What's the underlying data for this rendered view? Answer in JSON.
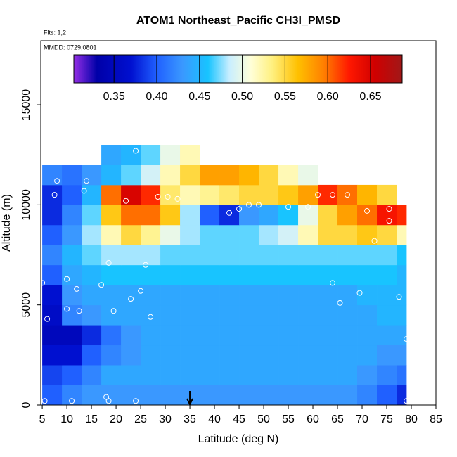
{
  "chart_data": {
    "type": "heatmap",
    "title": "ATOM1 Northeast_Pacific CH3I_PMSD",
    "flights": "Flts: 1,2",
    "dates": "MMDD: 0729,0801",
    "xlabel": "Latitude (deg N)",
    "ylabel": "Altitude (m)",
    "xlim": [
      4.7,
      85
    ],
    "ylim": [
      0,
      18200
    ],
    "xticks": [
      5,
      10,
      15,
      20,
      25,
      30,
      35,
      40,
      45,
      50,
      55,
      60,
      65,
      70,
      75,
      80,
      85
    ],
    "yticks": [
      0,
      5000,
      10000,
      15000
    ],
    "xedges": [
      5,
      9,
      13,
      17,
      21,
      25,
      29,
      33,
      37,
      41,
      45,
      49,
      53,
      57,
      61,
      65,
      69,
      73,
      77,
      79
    ],
    "yedges": [
      0,
      1000,
      2000,
      3000,
      4000,
      5000,
      6000,
      7000,
      8000,
      9000,
      10000,
      11000,
      12000,
      13000
    ],
    "z": [
      [
        0.4,
        0.42,
        0.43,
        0.43,
        0.43,
        0.43,
        0.43,
        0.43,
        0.43,
        0.43,
        0.43,
        0.43,
        0.43,
        0.43,
        0.43,
        0.43,
        0.42,
        0.4,
        0.38
      ],
      [
        0.39,
        0.4,
        0.42,
        0.44,
        0.44,
        0.44,
        0.44,
        0.44,
        0.44,
        0.44,
        0.44,
        0.44,
        0.44,
        0.44,
        0.44,
        0.44,
        0.43,
        0.42,
        0.41
      ],
      [
        0.37,
        0.37,
        0.4,
        0.42,
        0.43,
        0.44,
        0.44,
        0.44,
        0.44,
        0.44,
        0.44,
        0.44,
        0.44,
        0.44,
        0.44,
        0.44,
        0.44,
        0.43,
        0.43
      ],
      [
        0.35,
        0.35,
        0.38,
        0.41,
        0.43,
        0.44,
        0.44,
        0.44,
        0.44,
        0.44,
        0.44,
        0.44,
        0.44,
        0.44,
        0.44,
        0.44,
        0.44,
        0.44,
        0.44
      ],
      [
        0.36,
        0.42,
        0.43,
        0.44,
        0.44,
        0.44,
        0.44,
        0.44,
        0.44,
        0.44,
        0.44,
        0.44,
        0.44,
        0.44,
        0.44,
        0.44,
        0.44,
        0.45,
        0.45
      ],
      [
        0.37,
        0.43,
        0.44,
        0.44,
        0.44,
        0.44,
        0.44,
        0.44,
        0.44,
        0.44,
        0.44,
        0.44,
        0.44,
        0.44,
        0.44,
        0.44,
        0.45,
        0.45,
        0.45
      ],
      [
        0.4,
        0.44,
        0.45,
        0.46,
        0.46,
        0.46,
        0.46,
        0.46,
        0.46,
        0.46,
        0.46,
        0.46,
        0.46,
        0.46,
        0.46,
        0.46,
        0.46,
        0.46,
        0.45
      ],
      [
        0.42,
        0.45,
        0.47,
        0.48,
        0.48,
        0.48,
        0.47,
        0.47,
        0.47,
        0.47,
        0.47,
        0.47,
        0.47,
        0.47,
        0.47,
        0.47,
        0.47,
        0.47,
        0.46
      ],
      [
        0.4,
        0.43,
        0.48,
        0.52,
        0.55,
        0.53,
        0.5,
        0.48,
        0.47,
        0.47,
        0.47,
        0.48,
        0.49,
        0.52,
        0.55,
        0.55,
        0.56,
        0.55,
        0.52
      ],
      [
        0.38,
        0.42,
        0.47,
        0.56,
        0.6,
        0.6,
        0.56,
        0.48,
        0.4,
        0.38,
        0.43,
        0.44,
        0.46,
        0.5,
        0.55,
        0.58,
        0.6,
        0.63,
        0.62
      ],
      [
        0.38,
        0.4,
        0.45,
        0.6,
        0.65,
        0.62,
        0.54,
        0.52,
        0.53,
        0.54,
        0.55,
        0.55,
        0.56,
        0.58,
        0.62,
        0.6,
        0.57,
        0.55,
        null
      ],
      [
        0.42,
        0.41,
        0.43,
        0.45,
        0.47,
        0.49,
        0.52,
        0.55,
        0.58,
        0.58,
        0.57,
        0.55,
        0.52,
        0.5,
        null,
        null,
        null,
        null,
        null
      ],
      [
        null,
        null,
        null,
        0.44,
        0.45,
        0.47,
        0.5,
        0.52,
        null,
        null,
        null,
        null,
        null,
        null,
        null,
        null,
        null,
        null,
        null
      ]
    ],
    "colorscale": [
      [
        0.305,
        "#8a2be2"
      ],
      [
        0.33,
        "#0000a8"
      ],
      [
        0.37,
        "#0010d0"
      ],
      [
        0.4,
        "#2060ff"
      ],
      [
        0.43,
        "#3a98ff"
      ],
      [
        0.46,
        "#18c4ff"
      ],
      [
        0.485,
        "#c8eeff"
      ],
      [
        0.51,
        "#ffffd8"
      ],
      [
        0.535,
        "#fff080"
      ],
      [
        0.565,
        "#ffc000"
      ],
      [
        0.595,
        "#ff8000"
      ],
      [
        0.625,
        "#ff1800"
      ],
      [
        0.655,
        "#d00000"
      ],
      [
        0.687,
        "#a01818"
      ]
    ],
    "colorbar_lim": [
      0.303,
      0.687
    ],
    "colorbar_ticks": [
      0.35,
      {
        "value": 0.4,
        "label": "0.40"
      },
      0.45,
      {
        "value": 0.5,
        "label": "0.50"
      },
      0.55,
      {
        "value": 0.6,
        "label": "0.60"
      },
      0.65
    ],
    "points": {
      "x": [
        5.5,
        11,
        18,
        18.5,
        24,
        79,
        5,
        6,
        10,
        12.5,
        10,
        12,
        17,
        19.5,
        23,
        25,
        27,
        18.5,
        26,
        64,
        65.5,
        69.5,
        77.5,
        79,
        7.5,
        8,
        14,
        13.5,
        22,
        28.5,
        30.5,
        32.5,
        43,
        45,
        47,
        49,
        55,
        59,
        61,
        64,
        67,
        71,
        75.5,
        75.5,
        72.5,
        24
      ],
      "y": [
        200,
        200,
        400,
        200,
        200,
        200,
        6100,
        4300,
        4800,
        4700,
        6300,
        5800,
        6000,
        4700,
        5300,
        5700,
        4400,
        7100,
        7000,
        6100,
        5100,
        5600,
        5400,
        3300,
        10500,
        11200,
        11200,
        10700,
        10200,
        10400,
        10400,
        10300,
        9600,
        9800,
        10000,
        10000,
        9900,
        9900,
        10500,
        10500,
        10500,
        9700,
        9800,
        9200,
        8200,
        12700
      ]
    },
    "arrow_x": 35
  }
}
